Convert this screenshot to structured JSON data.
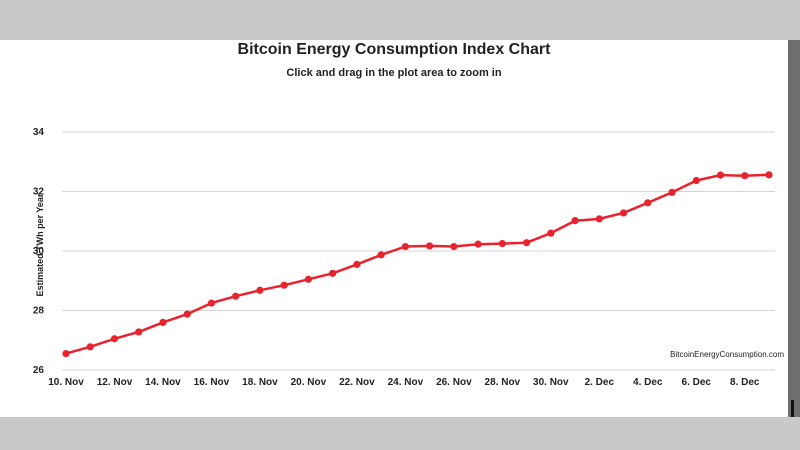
{
  "chart_data": {
    "type": "line",
    "title": "Bitcoin Energy Consumption Index Chart",
    "subtitle": "Click and drag in the plot area to zoom in",
    "xlabel": "",
    "ylabel": "Estimated TWh per Year",
    "credit": "BitcoinEnergyConsumption.com",
    "ylim": [
      26,
      34
    ],
    "yticks": [
      26,
      28,
      30,
      32,
      34
    ],
    "grid": true,
    "series_color": "#e8232e",
    "x": [
      "10 Nov",
      "11 Nov",
      "12 Nov",
      "13 Nov",
      "14 Nov",
      "15 Nov",
      "16 Nov",
      "17 Nov",
      "18 Nov",
      "19 Nov",
      "20 Nov",
      "21 Nov",
      "22 Nov",
      "23 Nov",
      "24 Nov",
      "25 Nov",
      "26 Nov",
      "27 Nov",
      "28 Nov",
      "29 Nov",
      "30 Nov",
      "1 Dec",
      "2 Dec",
      "3 Dec",
      "4 Dec",
      "5 Dec",
      "6 Dec",
      "7 Dec",
      "8 Dec",
      "9 Dec"
    ],
    "xtick_labels": [
      "10. Nov",
      "12. Nov",
      "14. Nov",
      "16. Nov",
      "18. Nov",
      "20. Nov",
      "22. Nov",
      "24. Nov",
      "26. Nov",
      "28. Nov",
      "30. Nov",
      "2. Dec",
      "4. Dec",
      "6. Dec",
      "8. Dec"
    ],
    "series": [
      {
        "values": [
          26.55,
          26.78,
          27.05,
          27.28,
          27.6,
          27.88,
          28.25,
          28.48,
          28.68,
          28.85,
          29.05,
          29.25,
          29.55,
          29.87,
          30.15,
          30.17,
          30.15,
          30.23,
          30.25,
          30.28,
          30.6,
          31.02,
          31.08,
          31.28,
          31.62,
          31.97,
          32.37,
          32.55,
          32.53,
          32.56
        ]
      }
    ]
  }
}
